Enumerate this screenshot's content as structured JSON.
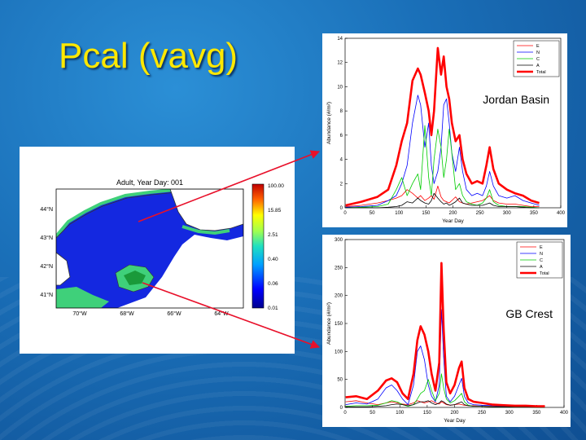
{
  "slide": {
    "title": "Pcal (vavg)"
  },
  "map": {
    "title": "Adult,    Year Day: 001",
    "lat_ticks": [
      "44°N",
      "43°N",
      "42°N",
      "41°N"
    ],
    "lon_ticks": [
      "70°W",
      "68°W",
      "66°W",
      "64°W"
    ],
    "colorbar_labels": [
      "100.00",
      "15.85",
      "2.51",
      "0.40",
      "0.06",
      "0.01"
    ],
    "colors": {
      "ocean": "#1a2ee0",
      "land": "#ffffff",
      "bank": "#3fd07a"
    }
  },
  "chart_data": [
    {
      "type": "line",
      "title": "",
      "annotation": "Jordan Basin",
      "xlabel": "Year Day",
      "ylabel": "Abundance (#/m²)",
      "xlim": [
        0,
        400
      ],
      "ylim": [
        0,
        14
      ],
      "xticks": [
        0,
        50,
        100,
        150,
        200,
        250,
        300,
        350,
        400
      ],
      "yticks": [
        0,
        2,
        4,
        6,
        8,
        10,
        12,
        14
      ],
      "legend_position": "top-right",
      "x": [
        1,
        30,
        60,
        80,
        95,
        105,
        115,
        125,
        135,
        140,
        148,
        155,
        160,
        165,
        172,
        178,
        183,
        188,
        193,
        198,
        205,
        212,
        218,
        225,
        235,
        245,
        255,
        262,
        268,
        275,
        285,
        300,
        315,
        330,
        345,
        360
      ],
      "series": [
        {
          "name": "E",
          "color": "#ff0000",
          "width": 0.8,
          "values": [
            0.1,
            0.2,
            0.4,
            0.6,
            0.8,
            1.0,
            1.5,
            1.2,
            0.8,
            1.0,
            0.6,
            0.8,
            1.0,
            0.7,
            1.8,
            0.9,
            0.6,
            0.5,
            0.4,
            0.6,
            0.9,
            0.5,
            0.4,
            0.3,
            0.4,
            0.5,
            0.6,
            0.8,
            1.0,
            0.6,
            0.4,
            0.3,
            0.3,
            0.2,
            0.1,
            0.1
          ]
        },
        {
          "name": "N",
          "color": "#0000ff",
          "width": 0.8,
          "values": [
            0.05,
            0.1,
            0.2,
            0.6,
            1.0,
            2.0,
            3.5,
            7.0,
            9.3,
            8.5,
            5.0,
            7.0,
            3.5,
            2.0,
            3.0,
            5.0,
            8.5,
            9.0,
            7.0,
            4.5,
            3.0,
            5.0,
            3.0,
            1.5,
            1.0,
            1.2,
            1.0,
            1.8,
            3.0,
            1.8,
            1.0,
            0.8,
            1.0,
            0.6,
            0.4,
            0.2
          ]
        },
        {
          "name": "C",
          "color": "#00cc00",
          "width": 0.8,
          "values": [
            0.0,
            0.05,
            0.1,
            0.3,
            1.5,
            2.5,
            1.0,
            2.0,
            2.8,
            1.5,
            6.8,
            2.5,
            1.0,
            4.0,
            6.5,
            5.0,
            2.5,
            4.0,
            6.5,
            4.5,
            1.5,
            2.0,
            1.0,
            0.5,
            0.3,
            0.2,
            0.4,
            0.8,
            1.5,
            0.5,
            0.2,
            0.1,
            0.1,
            0.1,
            0.05,
            0.0
          ]
        },
        {
          "name": "A",
          "color": "#000000",
          "width": 0.8,
          "values": [
            0.0,
            0.0,
            0.0,
            0.05,
            0.1,
            0.2,
            0.5,
            0.4,
            0.8,
            0.6,
            0.4,
            0.3,
            0.6,
            1.2,
            0.8,
            0.5,
            0.3,
            0.4,
            0.2,
            0.3,
            0.5,
            0.8,
            0.4,
            0.3,
            0.2,
            0.2,
            0.2,
            0.3,
            0.4,
            0.2,
            0.1,
            0.1,
            0.1,
            0.05,
            0.0,
            0.0
          ]
        },
        {
          "name": "Total",
          "color": "#ff0000",
          "width": 2.6,
          "values": [
            0.2,
            0.5,
            0.9,
            1.5,
            3.5,
            5.5,
            7.0,
            10.5,
            11.5,
            11.0,
            9.5,
            8.0,
            6.0,
            8.0,
            13.2,
            11.0,
            12.5,
            10.0,
            9.0,
            7.0,
            5.5,
            6.0,
            4.0,
            2.8,
            2.0,
            2.2,
            2.0,
            3.5,
            5.0,
            3.2,
            2.0,
            1.5,
            1.2,
            1.0,
            0.6,
            0.4
          ]
        }
      ]
    },
    {
      "type": "line",
      "title": "",
      "annotation": "GB Crest",
      "xlabel": "Year Day",
      "ylabel": "Abundance (#/m²)",
      "xlim": [
        0,
        400
      ],
      "ylim": [
        0,
        300
      ],
      "xticks": [
        0,
        50,
        100,
        150,
        200,
        250,
        300,
        350,
        400
      ],
      "yticks": [
        0,
        50,
        100,
        150,
        200,
        250,
        300
      ],
      "legend_position": "top-right",
      "x": [
        1,
        20,
        40,
        60,
        75,
        85,
        95,
        105,
        115,
        125,
        132,
        138,
        145,
        152,
        158,
        165,
        172,
        176,
        180,
        185,
        192,
        200,
        208,
        213,
        218,
        225,
        235,
        250,
        270,
        290,
        310,
        330,
        350,
        365
      ],
      "series": [
        {
          "name": "E",
          "color": "#ff0000",
          "width": 0.8,
          "values": [
            10,
            12,
            8,
            5,
            8,
            10,
            8,
            6,
            5,
            8,
            12,
            10,
            8,
            10,
            12,
            8,
            6,
            10,
            8,
            5,
            4,
            5,
            6,
            5,
            4,
            3,
            3,
            2,
            2,
            2,
            2,
            1,
            1,
            1
          ]
        },
        {
          "name": "N",
          "color": "#0000ff",
          "width": 0.8,
          "values": [
            5,
            8,
            6,
            15,
            35,
            40,
            30,
            15,
            5,
            40,
            100,
            110,
            85,
            40,
            20,
            10,
            40,
            175,
            90,
            20,
            10,
            20,
            40,
            52,
            20,
            8,
            5,
            4,
            3,
            2,
            2,
            2,
            1,
            1
          ]
        },
        {
          "name": "C",
          "color": "#00cc00",
          "width": 0.8,
          "values": [
            2,
            3,
            3,
            4,
            8,
            12,
            10,
            5,
            2,
            5,
            15,
            25,
            30,
            50,
            30,
            12,
            25,
            60,
            35,
            15,
            8,
            12,
            20,
            25,
            10,
            4,
            2,
            2,
            1,
            1,
            1,
            1,
            0,
            0
          ]
        },
        {
          "name": "A",
          "color": "#000000",
          "width": 0.8,
          "values": [
            1,
            1,
            1,
            2,
            3,
            5,
            6,
            5,
            3,
            5,
            8,
            10,
            10,
            12,
            8,
            5,
            8,
            12,
            10,
            6,
            4,
            5,
            8,
            10,
            5,
            3,
            2,
            2,
            1,
            1,
            1,
            1,
            0,
            0
          ]
        },
        {
          "name": "Total",
          "color": "#ff0000",
          "width": 2.6,
          "values": [
            18,
            20,
            15,
            30,
            48,
            52,
            45,
            25,
            15,
            60,
            120,
            145,
            130,
            100,
            60,
            30,
            80,
            258,
            140,
            45,
            25,
            40,
            70,
            82,
            35,
            15,
            10,
            8,
            5,
            4,
            3,
            3,
            2,
            2
          ]
        }
      ]
    }
  ]
}
